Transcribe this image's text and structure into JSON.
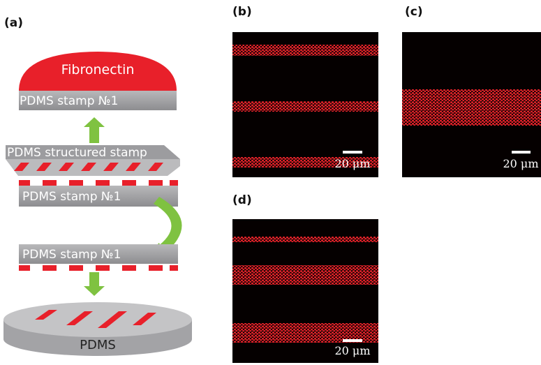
{
  "panel_a": {
    "label": "(a)",
    "fibronectin": "Fibronectin",
    "stamp_top": "PDMS stamp №1",
    "structured_stamp": "PDMS structured stamp",
    "stamp_middle": "PDMS stamp №1",
    "stamp_lower": "PDMS stamp №1",
    "substrate": "PDMS"
  },
  "panel_b": {
    "label": "(b)",
    "scale_bar": "20 μm"
  },
  "panel_c": {
    "label": "(c)",
    "scale_bar": "20 μm"
  },
  "panel_d": {
    "label": "(d)",
    "scale_bar": "20 μm"
  }
}
